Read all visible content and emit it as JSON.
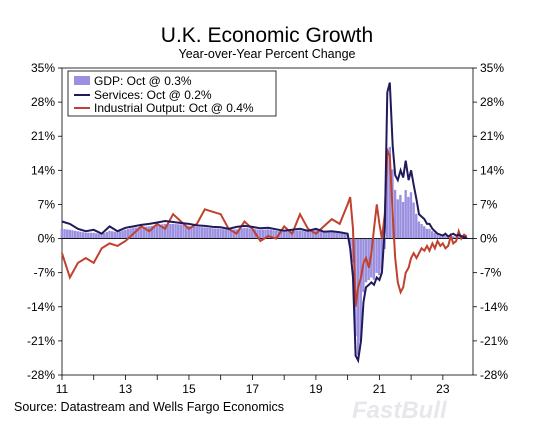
{
  "chart_data": {
    "type": "bar+line",
    "title": "U.K. Economic Growth",
    "subtitle": "Year-over-Year Percent Change",
    "source": "Source: Datastream and Wells Fargo Economics",
    "watermark": "FastBull",
    "ylim": [
      -28,
      35
    ],
    "yticks": [
      35,
      28,
      21,
      14,
      7,
      0,
      -7,
      -14,
      -21,
      -28
    ],
    "ytick_labels": [
      "35%",
      "28%",
      "21%",
      "14%",
      "7%",
      "0%",
      "-7%",
      "-14%",
      "-21%",
      "-28%"
    ],
    "xlim": [
      2011.0,
      2023.95
    ],
    "xticks": [
      2011,
      2013,
      2015,
      2017,
      2019,
      2021,
      2023
    ],
    "xtick_labels": [
      "11",
      "13",
      "15",
      "17",
      "19",
      "21",
      "23"
    ],
    "legend_position": "top-left",
    "colors": {
      "gdp": "#9b8fe0",
      "services": "#1f1a5a",
      "industrial": "#c0412e"
    },
    "series": [
      {
        "name": "GDP: Oct @ 0.3%",
        "type": "bar",
        "color": "#9b8fe0",
        "x": [
          2011.0,
          2011.25,
          2011.5,
          2011.75,
          2012.0,
          2012.25,
          2012.5,
          2012.75,
          2013.0,
          2013.25,
          2013.5,
          2013.75,
          2014.0,
          2014.25,
          2014.5,
          2014.75,
          2015.0,
          2015.25,
          2015.5,
          2015.75,
          2016.0,
          2016.25,
          2016.5,
          2016.75,
          2017.0,
          2017.25,
          2017.5,
          2017.75,
          2018.0,
          2018.25,
          2018.5,
          2018.75,
          2019.0,
          2019.25,
          2019.5,
          2019.75,
          2020.0,
          2020.08,
          2020.17,
          2020.25,
          2020.33,
          2020.42,
          2020.5,
          2020.58,
          2020.67,
          2020.75,
          2020.83,
          2020.92,
          2021.0,
          2021.08,
          2021.17,
          2021.25,
          2021.33,
          2021.42,
          2021.5,
          2021.58,
          2021.67,
          2021.75,
          2021.83,
          2021.92,
          2022.0,
          2022.08,
          2022.17,
          2022.25,
          2022.33,
          2022.42,
          2022.5,
          2022.58,
          2022.67,
          2022.75,
          2022.83,
          2022.92,
          2023.0,
          2023.08,
          2023.17,
          2023.25,
          2023.33,
          2023.42,
          2023.5,
          2023.58,
          2023.67,
          2023.75
        ],
        "values": [
          2.0,
          1.8,
          1.5,
          1.2,
          1.2,
          0.9,
          1.6,
          1.3,
          1.8,
          2.2,
          2.4,
          2.5,
          2.8,
          3.0,
          3.0,
          2.9,
          2.6,
          2.4,
          2.3,
          2.1,
          2.0,
          1.8,
          1.9,
          2.2,
          2.0,
          1.8,
          1.9,
          1.6,
          1.4,
          1.5,
          1.7,
          1.4,
          1.8,
          1.2,
          1.3,
          1.1,
          0.9,
          -1.5,
          -5.0,
          -20.0,
          -24.0,
          -21.0,
          -11.0,
          -9.0,
          -8.5,
          -8.0,
          -8.5,
          -7.0,
          -7.5,
          -6.5,
          -2.0,
          18.5,
          19.0,
          14.0,
          10.0,
          8.0,
          9.0,
          7.5,
          10.0,
          8.5,
          9.5,
          7.5,
          5.0,
          3.5,
          3.0,
          2.5,
          2.0,
          2.0,
          1.5,
          1.2,
          0.8,
          0.5,
          0.4,
          0.6,
          0.2,
          0.4,
          0.5,
          0.3,
          0.6,
          0.4,
          0.3,
          0.3
        ]
      },
      {
        "name": "Services: Oct @ 0.2%",
        "type": "line",
        "color": "#1f1a5a",
        "x": [
          2011.0,
          2011.25,
          2011.5,
          2011.75,
          2012.0,
          2012.25,
          2012.5,
          2012.75,
          2013.0,
          2013.25,
          2013.5,
          2013.75,
          2014.0,
          2014.25,
          2014.5,
          2014.75,
          2015.0,
          2015.25,
          2015.5,
          2015.75,
          2016.0,
          2016.25,
          2016.5,
          2016.75,
          2017.0,
          2017.25,
          2017.5,
          2017.75,
          2018.0,
          2018.25,
          2018.5,
          2018.75,
          2019.0,
          2019.25,
          2019.5,
          2019.75,
          2020.0,
          2020.08,
          2020.17,
          2020.25,
          2020.33,
          2020.42,
          2020.5,
          2020.58,
          2020.67,
          2020.75,
          2020.83,
          2020.92,
          2021.0,
          2021.08,
          2021.17,
          2021.25,
          2021.33,
          2021.42,
          2021.5,
          2021.58,
          2021.67,
          2021.75,
          2021.83,
          2021.92,
          2022.0,
          2022.08,
          2022.17,
          2022.25,
          2022.33,
          2022.42,
          2022.5,
          2022.58,
          2022.67,
          2022.75,
          2022.83,
          2022.92,
          2023.0,
          2023.08,
          2023.17,
          2023.25,
          2023.33,
          2023.42,
          2023.5,
          2023.58,
          2023.67,
          2023.75
        ],
        "values": [
          3.5,
          3.0,
          2.0,
          1.5,
          1.8,
          1.0,
          2.5,
          1.5,
          2.2,
          2.5,
          2.8,
          3.0,
          3.3,
          3.6,
          3.4,
          3.2,
          3.0,
          2.7,
          2.6,
          2.4,
          2.3,
          2.0,
          2.4,
          2.6,
          2.4,
          2.1,
          2.2,
          1.9,
          1.6,
          1.8,
          2.0,
          1.6,
          2.0,
          1.4,
          1.5,
          1.3,
          1.0,
          -2.0,
          -8.0,
          -24.0,
          -25.0,
          -21.0,
          -13.0,
          -10.0,
          -9.5,
          -9.0,
          -9.5,
          -8.0,
          -8.5,
          -7.0,
          2.0,
          30.0,
          32.0,
          19.0,
          13.0,
          12.0,
          14.0,
          12.5,
          16.0,
          12.0,
          14.0,
          11.0,
          8.0,
          5.0,
          4.5,
          4.0,
          3.0,
          3.0,
          2.0,
          1.5,
          1.0,
          0.8,
          0.6,
          1.0,
          0.4,
          0.8,
          1.0,
          0.6,
          0.8,
          0.5,
          0.3,
          0.2
        ]
      },
      {
        "name": "Industrial Output: Oct @ 0.4%",
        "type": "line",
        "color": "#c0412e",
        "x": [
          2011.0,
          2011.25,
          2011.5,
          2011.75,
          2012.0,
          2012.25,
          2012.5,
          2012.75,
          2013.0,
          2013.25,
          2013.5,
          2013.75,
          2014.0,
          2014.25,
          2014.5,
          2014.75,
          2015.0,
          2015.25,
          2015.5,
          2015.75,
          2016.0,
          2016.25,
          2016.5,
          2016.75,
          2017.0,
          2017.25,
          2017.5,
          2017.75,
          2018.0,
          2018.25,
          2018.5,
          2018.75,
          2019.0,
          2019.25,
          2019.5,
          2019.75,
          2020.0,
          2020.08,
          2020.17,
          2020.25,
          2020.33,
          2020.42,
          2020.5,
          2020.58,
          2020.67,
          2020.75,
          2020.83,
          2020.92,
          2021.0,
          2021.08,
          2021.17,
          2021.25,
          2021.33,
          2021.42,
          2021.5,
          2021.58,
          2021.67,
          2021.75,
          2021.83,
          2021.92,
          2022.0,
          2022.08,
          2022.17,
          2022.25,
          2022.33,
          2022.42,
          2022.5,
          2022.58,
          2022.67,
          2022.75,
          2022.83,
          2022.92,
          2023.0,
          2023.08,
          2023.17,
          2023.25,
          2023.33,
          2023.42,
          2023.5,
          2023.58,
          2023.67,
          2023.75
        ],
        "values": [
          -3.0,
          -8.0,
          -5.0,
          -4.0,
          -5.0,
          -2.0,
          -1.0,
          -1.5,
          -0.5,
          1.0,
          2.5,
          1.5,
          3.0,
          2.0,
          5.0,
          3.5,
          2.0,
          3.0,
          6.0,
          5.5,
          5.0,
          2.0,
          1.0,
          3.5,
          2.0,
          -0.5,
          0.5,
          0.0,
          2.5,
          1.0,
          5.0,
          2.0,
          1.0,
          2.5,
          4.0,
          3.0,
          7.0,
          8.5,
          2.0,
          -14.0,
          -10.0,
          -8.0,
          -5.0,
          -4.0,
          -6.0,
          -3.0,
          2.0,
          7.0,
          3.0,
          0.0,
          5.0,
          18.0,
          17.0,
          5.0,
          -4.0,
          -9.0,
          -11.0,
          -10.0,
          -7.0,
          -6.0,
          -4.0,
          -3.0,
          -4.0,
          -3.0,
          -2.0,
          -2.5,
          -1.5,
          -2.5,
          -1.0,
          -2.0,
          -0.5,
          -1.5,
          -1.0,
          -2.0,
          -1.5,
          0.5,
          -1.0,
          -0.5,
          1.5,
          0.0,
          0.8,
          0.4
        ]
      }
    ]
  }
}
